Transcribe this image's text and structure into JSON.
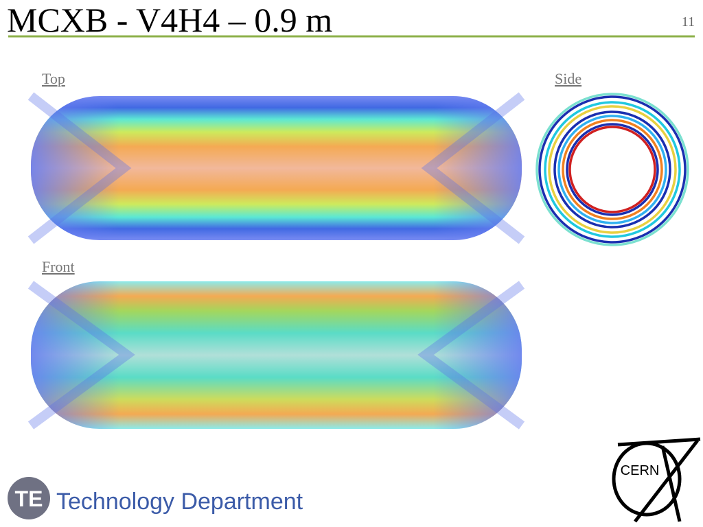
{
  "slide": {
    "title": "MCXB - V4H4 – 0.9 m",
    "page_number": "11",
    "views": {
      "top": "Top",
      "side": "Side",
      "front": "Front"
    },
    "footer": {
      "logo": "TE",
      "department": "Technology Department",
      "cern": "CERN"
    }
  }
}
